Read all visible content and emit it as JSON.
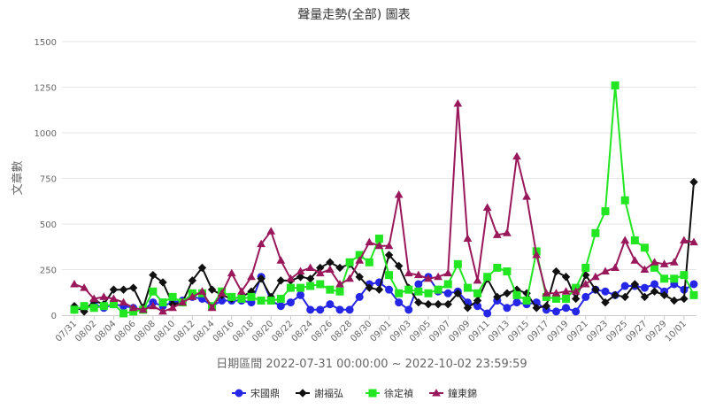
{
  "chart_data": {
    "type": "line",
    "title": "聲量走勢(全部) 圖表",
    "xlabel": "日期區間 2022-07-31 00:00:00 ~ 2022-10-02 23:59:59",
    "ylabel": "文章數",
    "ylim": [
      0,
      1500
    ],
    "yticks": [
      0,
      250,
      500,
      750,
      1000,
      1250,
      1500
    ],
    "grid": true,
    "legend_position": "bottom",
    "x": [
      "07/31",
      "08/01",
      "08/02",
      "08/03",
      "08/04",
      "08/05",
      "08/06",
      "08/07",
      "08/08",
      "08/09",
      "08/10",
      "08/11",
      "08/12",
      "08/13",
      "08/14",
      "08/15",
      "08/16",
      "08/17",
      "08/18",
      "08/19",
      "08/20",
      "08/21",
      "08/22",
      "08/23",
      "08/24",
      "08/25",
      "08/26",
      "08/27",
      "08/28",
      "08/29",
      "08/30",
      "08/31",
      "09/01",
      "09/02",
      "09/03",
      "09/04",
      "09/05",
      "09/06",
      "09/07",
      "09/08",
      "09/09",
      "09/10",
      "09/11",
      "09/12",
      "09/13",
      "09/14",
      "09/15",
      "09/16",
      "09/17",
      "09/18",
      "09/19",
      "09/20",
      "09/21",
      "09/22",
      "09/23",
      "09/24",
      "09/25",
      "09/26",
      "09/27",
      "09/28",
      "09/29",
      "09/30",
      "10/01",
      "10/02"
    ],
    "x_tick_labels": [
      "07/31",
      "08/02",
      "08/04",
      "08/06",
      "08/08",
      "08/10",
      "08/12",
      "08/14",
      "08/16",
      "08/18",
      "08/20",
      "08/22",
      "08/24",
      "08/26",
      "08/28",
      "08/30",
      "09/01",
      "09/03",
      "09/05",
      "09/07",
      "09/09",
      "09/11",
      "09/13",
      "09/15",
      "09/17",
      "09/19",
      "09/21",
      "09/23",
      "09/25",
      "09/27",
      "09/29",
      "10/01"
    ],
    "series": [
      {
        "name": "宋國鼎",
        "color": "#2626e6",
        "marker": "circle",
        "values": [
          30,
          40,
          60,
          40,
          60,
          50,
          40,
          30,
          70,
          50,
          70,
          80,
          100,
          90,
          50,
          80,
          80,
          80,
          70,
          210,
          80,
          50,
          70,
          110,
          30,
          30,
          60,
          30,
          30,
          100,
          170,
          180,
          140,
          70,
          30,
          170,
          210,
          130,
          120,
          130,
          70,
          50,
          10,
          80,
          40,
          70,
          60,
          70,
          30,
          20,
          40,
          20,
          100,
          140,
          130,
          110,
          160,
          160,
          150,
          170,
          130,
          170,
          140,
          170
        ]
      },
      {
        "name": "謝福弘",
        "color": "#111111",
        "marker": "diamond",
        "values": [
          50,
          20,
          80,
          60,
          140,
          140,
          150,
          40,
          220,
          180,
          60,
          70,
          190,
          260,
          140,
          110,
          90,
          100,
          130,
          200,
          100,
          190,
          190,
          210,
          200,
          260,
          290,
          260,
          280,
          210,
          150,
          140,
          330,
          270,
          150,
          70,
          60,
          60,
          60,
          120,
          40,
          80,
          200,
          100,
          120,
          140,
          120,
          40,
          50,
          240,
          210,
          90,
          220,
          140,
          70,
          110,
          100,
          170,
          100,
          130,
          110,
          80,
          90,
          730
        ]
      },
      {
        "name": "徐定禎",
        "color": "#22e622",
        "marker": "square",
        "values": [
          30,
          50,
          40,
          50,
          60,
          10,
          20,
          30,
          130,
          70,
          100,
          70,
          120,
          120,
          50,
          130,
          100,
          90,
          100,
          80,
          80,
          90,
          150,
          150,
          160,
          170,
          140,
          130,
          290,
          330,
          290,
          420,
          220,
          120,
          140,
          130,
          120,
          140,
          170,
          280,
          150,
          120,
          210,
          260,
          240,
          110,
          80,
          350,
          100,
          90,
          90,
          150,
          260,
          450,
          570,
          1260,
          630,
          410,
          370,
          260,
          200,
          200,
          220,
          110
        ]
      },
      {
        "name": "鐘東錦",
        "color": "#99185b",
        "marker": "triangle",
        "values": [
          170,
          150,
          90,
          100,
          90,
          70,
          40,
          30,
          50,
          20,
          40,
          70,
          100,
          130,
          40,
          120,
          230,
          130,
          210,
          390,
          460,
          300,
          200,
          240,
          260,
          230,
          250,
          170,
          200,
          300,
          400,
          380,
          380,
          660,
          230,
          220,
          200,
          210,
          230,
          1160,
          420,
          190,
          590,
          440,
          450,
          870,
          650,
          330,
          120,
          120,
          130,
          130,
          170,
          210,
          240,
          260,
          410,
          300,
          250,
          290,
          280,
          290,
          410,
          400
        ]
      }
    ]
  }
}
